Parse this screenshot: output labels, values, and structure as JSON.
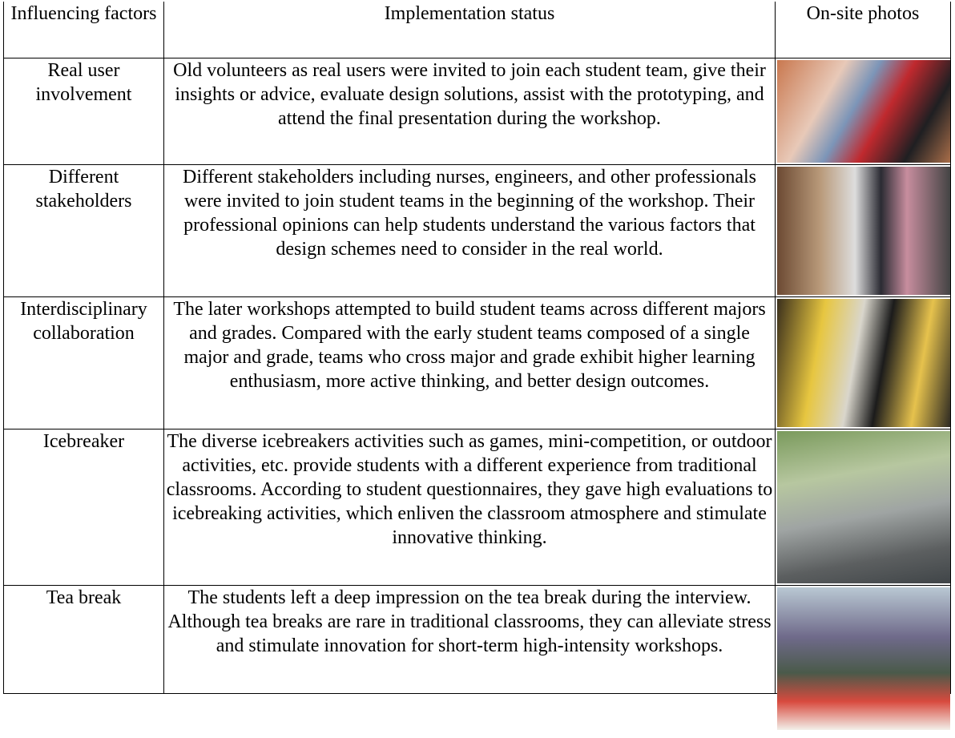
{
  "table": {
    "columns": [
      "Influencing factors",
      "Implementation status",
      "On-site photos"
    ],
    "rows": [
      [
        "Real user involvement",
        "Old volunteers as real users were invited to join each student team, give their insights or advice, evaluate design solutions, assist with the prototyping, and attend the final presentation during the workshop."
      ],
      [
        "Different stakeholders",
        "Different stakeholders including nurses, engineers, and other professionals were invited to join student teams in the beginning of the workshop. Their professional opinions can help students understand the various factors that design schemes need to consider in the real world."
      ],
      [
        "Interdisciplinary collaboration",
        "The later workshops attempted to build student teams across different majors and grades. Compared with the early student teams composed of a single major and grade, teams who cross major and grade exhibit higher learning enthusiasm, more active thinking, and better design outcomes."
      ],
      [
        "Icebreaker",
        "The diverse icebreakers activities such as games, mini-competition, or outdoor activities, etc. provide students with a different experience from traditional classrooms. According to student questionnaires, they gave high evaluations to icebreaking activities, which enliven the classroom atmosphere and stimulate innovative thinking."
      ],
      [
        "Tea break",
        "The students left a deep impression on the tea break during the interview. Although tea breaks are rare in traditional classrooms, they can alleviate stress and stimulate innovation for short-term high-intensity workshops."
      ]
    ]
  }
}
